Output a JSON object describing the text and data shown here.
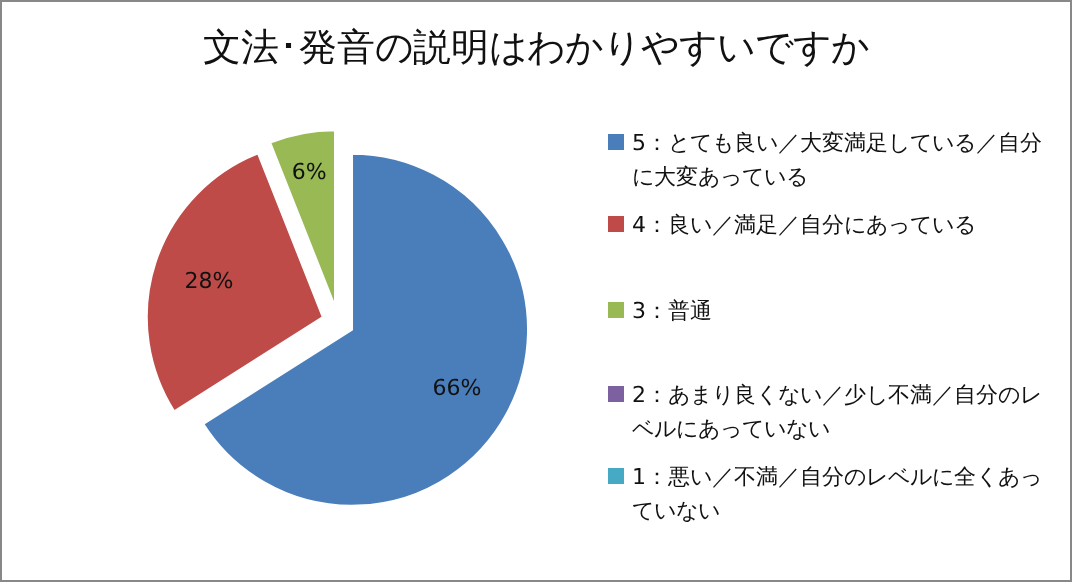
{
  "chart_data": {
    "type": "pie",
    "title": "文法･発音の説明はわかりやすいですか",
    "categories": [
      "5：とても良い／大変満足している／自分に大変あっている",
      "4：良い／満足／自分にあっている",
      "3：普通",
      "2：あまり良くない／少し不満／自分のレベルにあっていない",
      "1：悪い／不満／自分のレベルに全くあっていない"
    ],
    "values": [
      66,
      28,
      6,
      0,
      0
    ],
    "colors": [
      "#4a7ebb",
      "#be4b48",
      "#98b954",
      "#7d60a0",
      "#46aac5"
    ],
    "value_labels": [
      "66%",
      "28%",
      "6%",
      null,
      null
    ],
    "legend": "right"
  }
}
